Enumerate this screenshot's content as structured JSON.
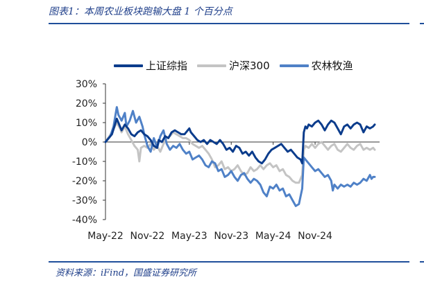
{
  "caption": "图表1：本周农业板块跑输大盘 1 个百分点",
  "source": "资料来源：iFind，国盛证券研究所",
  "chart_data": {
    "type": "line",
    "x_tick_labels": [
      "May-22",
      "Nov-22",
      "May-23",
      "Nov-23",
      "May-24",
      "Nov-24"
    ],
    "x_tick_positions": [
      0,
      26,
      52,
      78,
      104,
      130
    ],
    "y_tick_labels": [
      "30%",
      "20%",
      "10%",
      "0%",
      "-10%",
      "-20%",
      "-30%",
      "-40%"
    ],
    "ylim": [
      -40,
      30
    ],
    "x_range": [
      0,
      170
    ],
    "series": [
      {
        "name": "上证综指",
        "color": "#0b3c8c",
        "values": [
          [
            0,
            0
          ],
          [
            4,
            4
          ],
          [
            7,
            12
          ],
          [
            9,
            8
          ],
          [
            10,
            6
          ],
          [
            12,
            9
          ],
          [
            14,
            7
          ],
          [
            16,
            4
          ],
          [
            18,
            3
          ],
          [
            20,
            5
          ],
          [
            22,
            6
          ],
          [
            24,
            4
          ],
          [
            26,
            3
          ],
          [
            28,
            1
          ],
          [
            30,
            -2
          ],
          [
            32,
            -3
          ],
          [
            33,
            1
          ],
          [
            35,
            0
          ],
          [
            37,
            3
          ],
          [
            39,
            2
          ],
          [
            41,
            5
          ],
          [
            43,
            6
          ],
          [
            45,
            5
          ],
          [
            47,
            4
          ],
          [
            49,
            4
          ],
          [
            51,
            6
          ],
          [
            52,
            7
          ],
          [
            53,
            5
          ],
          [
            55,
            3
          ],
          [
            57,
            1
          ],
          [
            59,
            0
          ],
          [
            61,
            1
          ],
          [
            63,
            -1
          ],
          [
            65,
            1
          ],
          [
            67,
            0
          ],
          [
            69,
            -1
          ],
          [
            71,
            1
          ],
          [
            73,
            -1
          ],
          [
            75,
            -4
          ],
          [
            77,
            -3
          ],
          [
            79,
            -5
          ],
          [
            81,
            -2
          ],
          [
            83,
            -3
          ],
          [
            85,
            -6
          ],
          [
            87,
            -5
          ],
          [
            89,
            -7
          ],
          [
            91,
            -5
          ],
          [
            93,
            -8
          ],
          [
            95,
            -10
          ],
          [
            97,
            -11
          ],
          [
            99,
            -9
          ],
          [
            101,
            -6
          ],
          [
            103,
            -4
          ],
          [
            105,
            -3
          ],
          [
            107,
            -2
          ],
          [
            109,
            -1
          ],
          [
            111,
            -3
          ],
          [
            113,
            -5
          ],
          [
            115,
            -4
          ],
          [
            117,
            -6
          ],
          [
            119,
            -8
          ],
          [
            121,
            -9
          ],
          [
            122,
            -11
          ],
          [
            123,
            5
          ],
          [
            124,
            8
          ],
          [
            125,
            7
          ],
          [
            126,
            9
          ],
          [
            128,
            8
          ],
          [
            130,
            10
          ],
          [
            132,
            11
          ],
          [
            134,
            9
          ],
          [
            136,
            6
          ],
          [
            138,
            9
          ],
          [
            140,
            11
          ],
          [
            142,
            10
          ],
          [
            144,
            7
          ],
          [
            146,
            4
          ],
          [
            148,
            8
          ],
          [
            150,
            9
          ],
          [
            152,
            7
          ],
          [
            154,
            9
          ],
          [
            156,
            10
          ],
          [
            158,
            9
          ],
          [
            160,
            5
          ],
          [
            162,
            8
          ],
          [
            164,
            7
          ],
          [
            166,
            8
          ],
          [
            167,
            9
          ]
        ]
      },
      {
        "name": "沪深300",
        "color": "#c4c4c4",
        "values": [
          [
            0,
            0
          ],
          [
            4,
            5
          ],
          [
            7,
            10
          ],
          [
            9,
            7
          ],
          [
            10,
            5
          ],
          [
            12,
            8
          ],
          [
            14,
            4
          ],
          [
            16,
            1
          ],
          [
            18,
            -2
          ],
          [
            20,
            -4
          ],
          [
            21,
            -10
          ],
          [
            22,
            -3
          ],
          [
            24,
            -2
          ],
          [
            26,
            -3
          ],
          [
            28,
            -1
          ],
          [
            30,
            -4
          ],
          [
            32,
            -2
          ],
          [
            34,
            -5
          ],
          [
            36,
            -1
          ],
          [
            38,
            2
          ],
          [
            40,
            3
          ],
          [
            42,
            5
          ],
          [
            44,
            4
          ],
          [
            46,
            3
          ],
          [
            48,
            2
          ],
          [
            50,
            2
          ],
          [
            52,
            1
          ],
          [
            54,
            -1
          ],
          [
            56,
            -2
          ],
          [
            58,
            -3
          ],
          [
            60,
            -2
          ],
          [
            62,
            -4
          ],
          [
            64,
            -6
          ],
          [
            66,
            -9
          ],
          [
            68,
            -13
          ],
          [
            70,
            -12
          ],
          [
            72,
            -10
          ],
          [
            74,
            -14
          ],
          [
            76,
            -13
          ],
          [
            78,
            -15
          ],
          [
            80,
            -14
          ],
          [
            82,
            -12
          ],
          [
            84,
            -15
          ],
          [
            86,
            -17
          ],
          [
            88,
            -16
          ],
          [
            90,
            -13
          ],
          [
            92,
            -15
          ],
          [
            94,
            -14
          ],
          [
            96,
            -12
          ],
          [
            98,
            -14
          ],
          [
            100,
            -12
          ],
          [
            102,
            -11
          ],
          [
            104,
            -13
          ],
          [
            106,
            -12
          ],
          [
            108,
            -15
          ],
          [
            110,
            -14
          ],
          [
            112,
            -17
          ],
          [
            114,
            -18
          ],
          [
            116,
            -20
          ],
          [
            118,
            -21
          ],
          [
            120,
            -21
          ],
          [
            122,
            -17
          ],
          [
            123,
            -4
          ],
          [
            124,
            -2
          ],
          [
            126,
            -3
          ],
          [
            128,
            -1
          ],
          [
            130,
            -3
          ],
          [
            132,
            -1
          ],
          [
            134,
            0
          ],
          [
            136,
            -2
          ],
          [
            138,
            -4
          ],
          [
            140,
            -2
          ],
          [
            142,
            -1
          ],
          [
            144,
            -4
          ],
          [
            146,
            -5
          ],
          [
            148,
            -3
          ],
          [
            150,
            -1
          ],
          [
            152,
            -3
          ],
          [
            154,
            -4
          ],
          [
            156,
            -2
          ],
          [
            158,
            -1
          ],
          [
            160,
            -4
          ],
          [
            162,
            -3
          ],
          [
            164,
            -4
          ],
          [
            166,
            -3
          ],
          [
            167,
            -4
          ]
        ]
      },
      {
        "name": "农林牧渔",
        "color": "#4f81c7",
        "values": [
          [
            0,
            0
          ],
          [
            3,
            3
          ],
          [
            5,
            8
          ],
          [
            7,
            18
          ],
          [
            8,
            14
          ],
          [
            10,
            11
          ],
          [
            12,
            15
          ],
          [
            13,
            8
          ],
          [
            15,
            11
          ],
          [
            17,
            16
          ],
          [
            19,
            10
          ],
          [
            21,
            13
          ],
          [
            23,
            8
          ],
          [
            24,
            4
          ],
          [
            26,
            -2
          ],
          [
            28,
            -5
          ],
          [
            30,
            2
          ],
          [
            32,
            -3
          ],
          [
            34,
            3
          ],
          [
            36,
            6
          ],
          [
            38,
            -1
          ],
          [
            40,
            -4
          ],
          [
            42,
            -2
          ],
          [
            44,
            -3
          ],
          [
            46,
            -1
          ],
          [
            48,
            -4
          ],
          [
            50,
            -6
          ],
          [
            52,
            -5
          ],
          [
            54,
            -9
          ],
          [
            56,
            -8
          ],
          [
            58,
            -7
          ],
          [
            60,
            -9
          ],
          [
            62,
            -12
          ],
          [
            64,
            -13
          ],
          [
            66,
            -10
          ],
          [
            68,
            -11
          ],
          [
            70,
            -15
          ],
          [
            72,
            -14
          ],
          [
            74,
            -18
          ],
          [
            76,
            -17
          ],
          [
            78,
            -15
          ],
          [
            80,
            -18
          ],
          [
            82,
            -20
          ],
          [
            84,
            -17
          ],
          [
            86,
            -16
          ],
          [
            88,
            -19
          ],
          [
            90,
            -21
          ],
          [
            92,
            -19
          ],
          [
            94,
            -20
          ],
          [
            96,
            -22
          ],
          [
            98,
            -26
          ],
          [
            100,
            -28
          ],
          [
            102,
            -23
          ],
          [
            104,
            -24
          ],
          [
            106,
            -22
          ],
          [
            108,
            -25
          ],
          [
            110,
            -24
          ],
          [
            112,
            -28
          ],
          [
            114,
            -27
          ],
          [
            116,
            -30
          ],
          [
            118,
            -33
          ],
          [
            120,
            -32
          ],
          [
            122,
            -24
          ],
          [
            123,
            -8
          ],
          [
            124,
            -9
          ],
          [
            126,
            -11
          ],
          [
            128,
            -13
          ],
          [
            130,
            -15
          ],
          [
            132,
            -14
          ],
          [
            134,
            -16
          ],
          [
            136,
            -18
          ],
          [
            138,
            -17
          ],
          [
            140,
            -20
          ],
          [
            141,
            -25
          ],
          [
            142,
            -22
          ],
          [
            144,
            -24
          ],
          [
            146,
            -22
          ],
          [
            148,
            -23
          ],
          [
            150,
            -22
          ],
          [
            152,
            -23
          ],
          [
            154,
            -21
          ],
          [
            156,
            -22
          ],
          [
            158,
            -21
          ],
          [
            160,
            -19
          ],
          [
            162,
            -20
          ],
          [
            164,
            -17
          ],
          [
            165,
            -19
          ],
          [
            166,
            -18
          ],
          [
            167,
            -18
          ]
        ]
      }
    ]
  }
}
